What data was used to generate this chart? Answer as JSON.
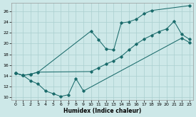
{
  "xlabel": "Humidex (Indice chaleur)",
  "bg_color": "#cde8e8",
  "grid_color": "#aacfcf",
  "line_color": "#1a6b6b",
  "xlim": [
    -0.5,
    23.5
  ],
  "ylim": [
    9.5,
    27.5
  ],
  "xticks": [
    0,
    1,
    2,
    3,
    4,
    5,
    6,
    7,
    8,
    9,
    10,
    11,
    12,
    13,
    14,
    15,
    16,
    17,
    18,
    19,
    20,
    21,
    22,
    23
  ],
  "yticks": [
    10,
    12,
    14,
    16,
    18,
    20,
    22,
    24,
    26
  ],
  "line1_x": [
    0,
    1,
    2,
    3,
    10,
    11,
    12,
    13,
    14,
    15,
    16,
    17,
    18,
    23
  ],
  "line1_y": [
    14.5,
    14.1,
    14.3,
    14.7,
    22.3,
    20.7,
    19.0,
    18.8,
    23.8,
    24.0,
    24.5,
    25.5,
    26.1,
    27.0
  ],
  "line2_x": [
    0,
    1,
    2,
    3,
    10,
    11,
    12,
    13,
    14,
    15,
    16,
    17,
    18,
    19,
    20,
    21,
    22,
    23
  ],
  "line2_y": [
    14.5,
    14.1,
    14.3,
    14.7,
    14.8,
    15.5,
    16.2,
    16.8,
    17.6,
    18.8,
    19.9,
    20.8,
    21.5,
    22.2,
    22.7,
    24.1,
    21.7,
    20.8
  ],
  "line3_x": [
    0,
    1,
    2,
    3,
    4,
    5,
    6,
    7,
    8,
    9,
    22,
    23
  ],
  "line3_y": [
    14.5,
    14.1,
    13.1,
    12.5,
    11.2,
    10.7,
    10.2,
    10.5,
    13.5,
    11.2,
    21.0,
    20.2
  ]
}
